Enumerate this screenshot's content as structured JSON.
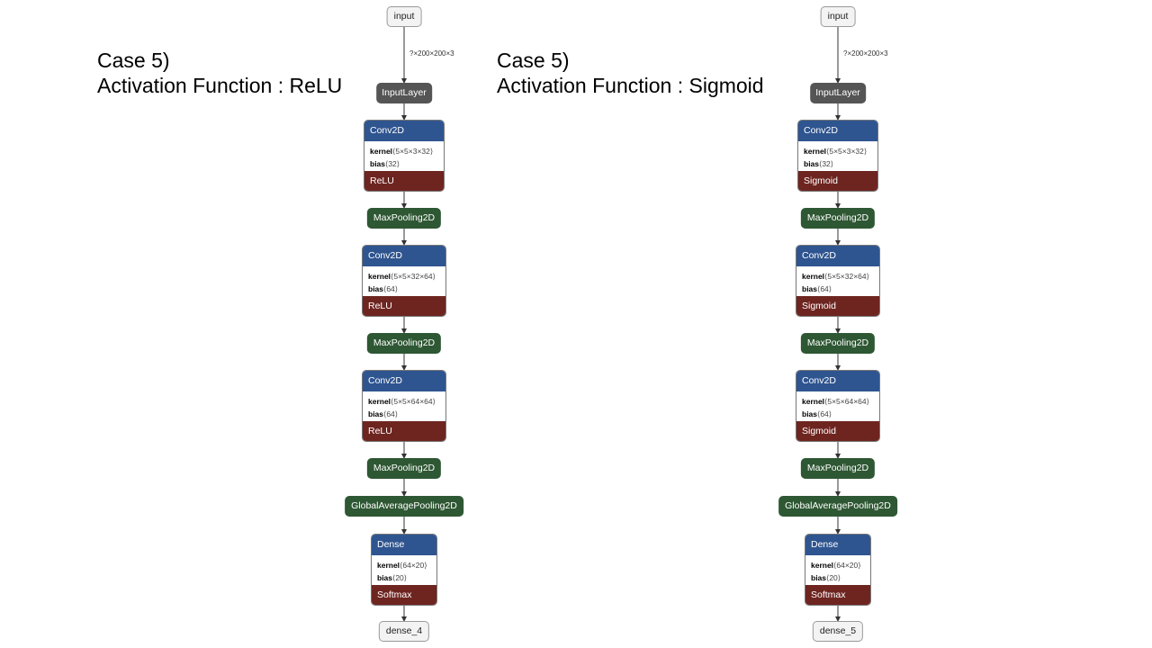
{
  "captions": [
    {
      "line1": "Case 5)",
      "line2": "Activation Function : ReLU"
    },
    {
      "line1": "Case 5)",
      "line2": "Activation Function : Sigmoid"
    }
  ],
  "graphs": [
    {
      "input_label": "input",
      "input_shape": "?×200×200×3",
      "input_layer": "InputLayer",
      "conv1": {
        "title": "Conv2D",
        "kernel_label": "kernel",
        "kernel": "⟨5×5×3×32⟩",
        "bias_label": "bias",
        "bias": "⟨32⟩",
        "activation": "ReLU"
      },
      "pool1": "MaxPooling2D",
      "conv2": {
        "title": "Conv2D",
        "kernel_label": "kernel",
        "kernel": "⟨5×5×32×64⟩",
        "bias_label": "bias",
        "bias": "⟨64⟩",
        "activation": "ReLU"
      },
      "pool2": "MaxPooling2D",
      "conv3": {
        "title": "Conv2D",
        "kernel_label": "kernel",
        "kernel": "⟨5×5×64×64⟩",
        "bias_label": "bias",
        "bias": "⟨64⟩",
        "activation": "ReLU"
      },
      "pool3": "MaxPooling2D",
      "gap": "GlobalAveragePooling2D",
      "dense": {
        "title": "Dense",
        "kernel_label": "kernel",
        "kernel": "⟨64×20⟩",
        "bias_label": "bias",
        "bias": "⟨20⟩",
        "activation": "Softmax"
      },
      "output_label": "dense_4"
    },
    {
      "input_label": "input",
      "input_shape": "?×200×200×3",
      "input_layer": "InputLayer",
      "conv1": {
        "title": "Conv2D",
        "kernel_label": "kernel",
        "kernel": "⟨5×5×3×32⟩",
        "bias_label": "bias",
        "bias": "⟨32⟩",
        "activation": "Sigmoid"
      },
      "pool1": "MaxPooling2D",
      "conv2": {
        "title": "Conv2D",
        "kernel_label": "kernel",
        "kernel": "⟨5×5×32×64⟩",
        "bias_label": "bias",
        "bias": "⟨64⟩",
        "activation": "Sigmoid"
      },
      "pool2": "MaxPooling2D",
      "conv3": {
        "title": "Conv2D",
        "kernel_label": "kernel",
        "kernel": "⟨5×5×64×64⟩",
        "bias_label": "bias",
        "bias": "⟨64⟩",
        "activation": "Sigmoid"
      },
      "pool3": "MaxPooling2D",
      "gap": "GlobalAveragePooling2D",
      "dense": {
        "title": "Dense",
        "kernel_label": "kernel",
        "kernel": "⟨64×20⟩",
        "bias_label": "bias",
        "bias": "⟨20⟩",
        "activation": "Softmax"
      },
      "output_label": "dense_5"
    }
  ],
  "colors": {
    "layer_header": "#2f5590",
    "activation": "#6e2520",
    "pooling": "#2e5733",
    "input_layer": "#555555"
  }
}
